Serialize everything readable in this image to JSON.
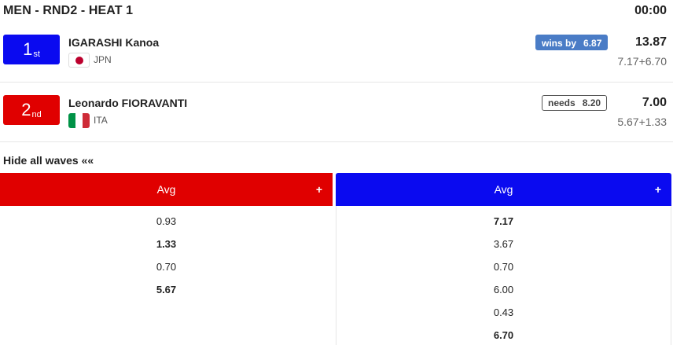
{
  "heat": {
    "title": "MEN - RND2 - HEAT 1",
    "clock": "00:00"
  },
  "athletes": [
    {
      "place_number": "1",
      "place_suffix": "st",
      "name": "IGARASHI Kanoa",
      "country": "JPN",
      "flag_icon": "japan-flag-icon",
      "color": "#0a0af0",
      "diff_label": "wins by",
      "diff_value": "6.87",
      "total": "13.87",
      "wave_sum": "7.17+6.70"
    },
    {
      "place_number": "2",
      "place_suffix": "nd",
      "name": "Leonardo FIORAVANTI",
      "country": "ITA",
      "flag_icon": "italy-flag-icon",
      "color": "#e00000",
      "diff_label": "needs",
      "diff_value": "8.20",
      "total": "7.00",
      "wave_sum": "5.67+1.33"
    }
  ],
  "waves_toggle": "Hide all waves ««",
  "columns": [
    {
      "header": "Avg",
      "plus": "+",
      "color": "#e00000",
      "waves": [
        {
          "score": "0.93",
          "counted": false
        },
        {
          "score": "1.33",
          "counted": true
        },
        {
          "score": "0.70",
          "counted": false
        },
        {
          "score": "5.67",
          "counted": true
        }
      ]
    },
    {
      "header": "Avg",
      "plus": "+",
      "color": "#0a0af0",
      "waves": [
        {
          "score": "7.17",
          "counted": true
        },
        {
          "score": "3.67",
          "counted": false
        },
        {
          "score": "0.70",
          "counted": false
        },
        {
          "score": "6.00",
          "counted": false
        },
        {
          "score": "0.43",
          "counted": false
        },
        {
          "score": "6.70",
          "counted": true
        }
      ]
    }
  ]
}
